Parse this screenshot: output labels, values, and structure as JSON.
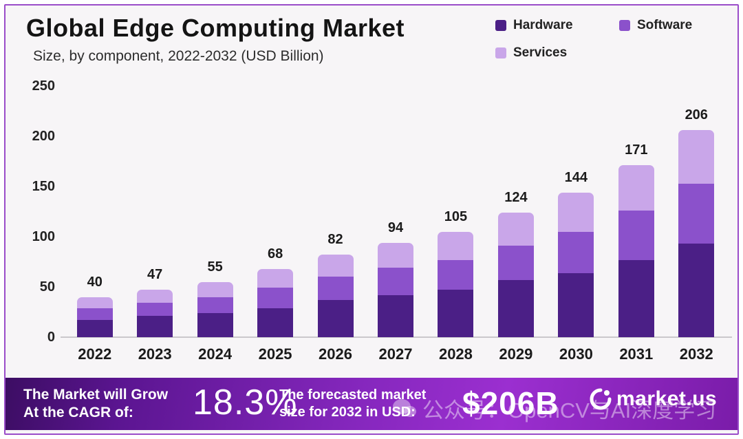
{
  "header": {
    "title": "Global Edge Computing Market",
    "subtitle": "Size, by component, 2022-2032 (USD Billion)"
  },
  "legend": {
    "position": "top-right",
    "items": [
      {
        "label": "Hardware",
        "color": "#4b1f86"
      },
      {
        "label": "Software",
        "color": "#8b51cb"
      },
      {
        "label": "Services",
        "color": "#c9a6e9"
      }
    ]
  },
  "chart_data": {
    "type": "bar",
    "stacked": true,
    "title": "Global Edge Computing Market Size, by component, 2022-2032 (USD Billion)",
    "categories": [
      "2022",
      "2023",
      "2024",
      "2025",
      "2026",
      "2027",
      "2028",
      "2029",
      "2030",
      "2031",
      "2032"
    ],
    "series": [
      {
        "name": "Hardware",
        "color": "#4b1f86",
        "values": [
          17,
          21,
          24,
          29,
          37,
          42,
          47,
          57,
          64,
          77,
          93
        ]
      },
      {
        "name": "Software",
        "color": "#8b51cb",
        "values": [
          12,
          13,
          16,
          20,
          23,
          27,
          30,
          34,
          41,
          49,
          60
        ]
      },
      {
        "name": "Services",
        "color": "#c9a6e9",
        "values": [
          11,
          13,
          15,
          19,
          22,
          25,
          28,
          33,
          39,
          45,
          53
        ]
      }
    ],
    "totals": [
      40,
      47,
      55,
      68,
      82,
      94,
      105,
      124,
      144,
      171,
      206
    ],
    "xlabel": "",
    "ylabel": "USD Billion",
    "ylim": [
      0,
      250
    ],
    "yticks": [
      0,
      50,
      100,
      150,
      200,
      250
    ],
    "grid": false,
    "legend_position": "top-right"
  },
  "banner": {
    "cagr_label": [
      "The Market will Grow",
      "At the CAGR of:"
    ],
    "cagr_value": "18.3%",
    "forecast_label": [
      "The forecasted market",
      "size for 2032 in USD:"
    ],
    "forecast_value": "$206B",
    "brand": "market.us",
    "gradient": [
      "#3c0d63",
      "#9b2fd0",
      "#7a1ca9"
    ]
  },
  "watermark": {
    "text": "公众号：OpenCV与AI深度学习"
  }
}
